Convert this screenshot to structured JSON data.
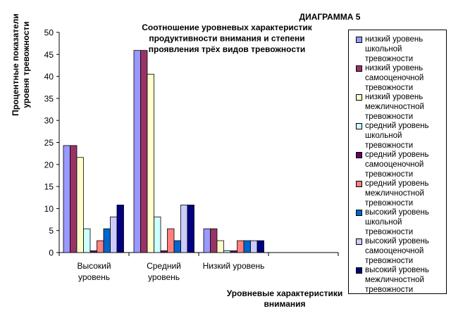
{
  "chart_data": {
    "type": "bar",
    "diagram_label": "ДИАГРАММА 5",
    "title": "Соотношение уровневых характеристик продуктивности внимания и степени проявления трёх видов тревожности",
    "xlabel": "Уровневые характеристики внимания",
    "ylabel": "Процентные показатели уровня тревожности",
    "ylim": [
      0,
      50
    ],
    "yticks": [
      0,
      5,
      10,
      15,
      20,
      25,
      30,
      35,
      40,
      45,
      50
    ],
    "grid": false,
    "legend_position": "right",
    "categories": [
      "Высокий уровень",
      "Средний уровень",
      "Низкий уровень",
      ""
    ],
    "series": [
      {
        "name": "низкий уровень школьной тревожности",
        "color": "#9999FF",
        "values": [
          24.3,
          45.9,
          5.4,
          0
        ]
      },
      {
        "name": "низкий уровень самооценочной тревожности",
        "color": "#993366",
        "values": [
          24.3,
          45.9,
          5.4,
          0
        ]
      },
      {
        "name": "низкий уровень межличностной тревожности",
        "color": "#FFFFCC",
        "values": [
          21.6,
          40.5,
          2.7,
          0
        ]
      },
      {
        "name": "средний уровень школьной тревожности",
        "color": "#CCFFFF",
        "values": [
          5.4,
          8.1,
          0.4,
          0
        ]
      },
      {
        "name": "средний уровень самооценочной тревожности",
        "color": "#660066",
        "values": [
          0.4,
          0.4,
          0.4,
          0
        ]
      },
      {
        "name": "средний уровень межличностной тревожности",
        "color": "#FF8080",
        "values": [
          2.7,
          5.4,
          2.7,
          0
        ]
      },
      {
        "name": "высокий уровень школьной тревожности",
        "color": "#0066CC",
        "values": [
          5.4,
          2.7,
          2.7,
          0
        ]
      },
      {
        "name": "высокий уровень самооценочной тревожности",
        "color": "#CCCCFF",
        "values": [
          8.1,
          10.8,
          2.7,
          0
        ]
      },
      {
        "name": "высокий уровень межличностной тревожности",
        "color": "#000080",
        "values": [
          10.8,
          10.8,
          2.7,
          0
        ]
      }
    ]
  }
}
